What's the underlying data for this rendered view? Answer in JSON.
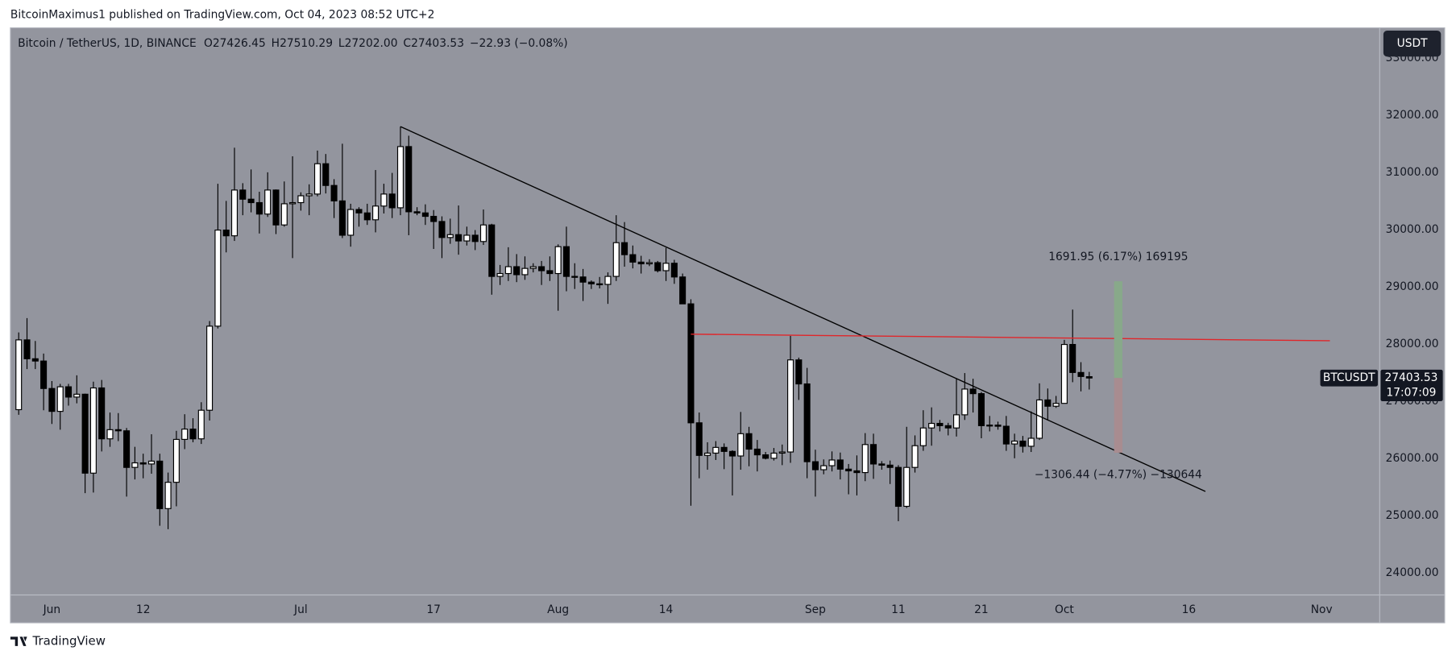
{
  "header": {
    "published": "BitcoinMaximus1 published on TradingView.com, Oct 04, 2023 08:52 UTC+2",
    "brand": "TradingView"
  },
  "chart_data": {
    "type": "candlestick",
    "symbol_label": "BTCUSDT",
    "currency": "USDT",
    "countdown": "17:07:09",
    "legend_title": "Bitcoin / TetherUS, 1D, BINANCE",
    "legend": [
      {
        "label": "O",
        "value": "27426.45"
      },
      {
        "label": "H",
        "value": "27510.29"
      },
      {
        "label": "L",
        "value": "27202.00"
      },
      {
        "label": "C",
        "value": "27403.53"
      }
    ],
    "change": "−22.93 (−0.08%)",
    "up_color": "#ffffff",
    "down_color": "#000000",
    "wick_color": "#000000",
    "background": "#93959e",
    "grid": false,
    "xlim": [
      "2023-05-27",
      "2023-11-08"
    ],
    "ylim": [
      23610,
      33526
    ],
    "yticks": [
      {
        "value": 24000,
        "label": "24000.00"
      },
      {
        "value": 25000,
        "label": "25000.00"
      },
      {
        "value": 26000,
        "label": "26000.00"
      },
      {
        "value": 27000,
        "label": "27000.00"
      },
      {
        "value": 28000,
        "label": "28000.00"
      },
      {
        "value": 29000,
        "label": "29000.00"
      },
      {
        "value": 30000,
        "label": "30000.00"
      },
      {
        "value": 31000,
        "label": "31000.00"
      },
      {
        "value": 32000,
        "label": "32000.00"
      },
      {
        "value": 33000,
        "label": "33000.00"
      }
    ],
    "xticks": [
      {
        "value": "2023-06-01",
        "label": "Jun"
      },
      {
        "value": "2023-06-12",
        "label": "12"
      },
      {
        "value": "2023-07-01",
        "label": "Jul"
      },
      {
        "value": "2023-07-17",
        "label": "17"
      },
      {
        "value": "2023-08-01",
        "label": "Aug"
      },
      {
        "value": "2023-08-14",
        "label": "14"
      },
      {
        "value": "2023-09-01",
        "label": "Sep"
      },
      {
        "value": "2023-09-11",
        "label": "11"
      },
      {
        "value": "2023-09-21",
        "label": "21"
      },
      {
        "value": "2023-10-01",
        "label": "Oct"
      },
      {
        "value": "2023-10-16",
        "label": "16"
      },
      {
        "value": "2023-11-01",
        "label": "Nov"
      }
    ],
    "x": [
      "2023-05-28",
      "2023-05-29",
      "2023-05-30",
      "2023-05-31",
      "2023-06-01",
      "2023-06-02",
      "2023-06-03",
      "2023-06-04",
      "2023-06-05",
      "2023-06-06",
      "2023-06-07",
      "2023-06-08",
      "2023-06-09",
      "2023-06-10",
      "2023-06-11",
      "2023-06-12",
      "2023-06-13",
      "2023-06-14",
      "2023-06-15",
      "2023-06-16",
      "2023-06-17",
      "2023-06-18",
      "2023-06-19",
      "2023-06-20",
      "2023-06-21",
      "2023-06-22",
      "2023-06-23",
      "2023-06-24",
      "2023-06-25",
      "2023-06-26",
      "2023-06-27",
      "2023-06-28",
      "2023-06-29",
      "2023-06-30",
      "2023-07-01",
      "2023-07-02",
      "2023-07-03",
      "2023-07-04",
      "2023-07-05",
      "2023-07-06",
      "2023-07-07",
      "2023-07-08",
      "2023-07-09",
      "2023-07-10",
      "2023-07-11",
      "2023-07-12",
      "2023-07-13",
      "2023-07-14",
      "2023-07-15",
      "2023-07-16",
      "2023-07-17",
      "2023-07-18",
      "2023-07-19",
      "2023-07-20",
      "2023-07-21",
      "2023-07-22",
      "2023-07-23",
      "2023-07-24",
      "2023-07-25",
      "2023-07-26",
      "2023-07-27",
      "2023-07-28",
      "2023-07-29",
      "2023-07-30",
      "2023-07-31",
      "2023-08-01",
      "2023-08-02",
      "2023-08-03",
      "2023-08-04",
      "2023-08-05",
      "2023-08-06",
      "2023-08-07",
      "2023-08-08",
      "2023-08-09",
      "2023-08-10",
      "2023-08-11",
      "2023-08-12",
      "2023-08-13",
      "2023-08-14",
      "2023-08-15",
      "2023-08-16",
      "2023-08-17",
      "2023-08-18",
      "2023-08-19",
      "2023-08-20",
      "2023-08-21",
      "2023-08-22",
      "2023-08-23",
      "2023-08-24",
      "2023-08-25",
      "2023-08-26",
      "2023-08-27",
      "2023-08-28",
      "2023-08-29",
      "2023-08-30",
      "2023-08-31",
      "2023-09-01",
      "2023-09-02",
      "2023-09-03",
      "2023-09-04",
      "2023-09-05",
      "2023-09-06",
      "2023-09-07",
      "2023-09-08",
      "2023-09-09",
      "2023-09-10",
      "2023-09-11",
      "2023-09-12",
      "2023-09-13",
      "2023-09-14",
      "2023-09-15",
      "2023-09-16",
      "2023-09-17",
      "2023-09-18",
      "2023-09-19",
      "2023-09-20",
      "2023-09-21",
      "2023-09-22",
      "2023-09-23",
      "2023-09-24",
      "2023-09-25",
      "2023-09-26",
      "2023-09-27",
      "2023-09-28",
      "2023-09-29",
      "2023-09-30",
      "2023-10-01",
      "2023-10-02",
      "2023-10-03",
      "2023-10-04"
    ],
    "ohlc": [
      [
        26850,
        28200,
        26760,
        28070
      ],
      [
        28070,
        28450,
        27560,
        27740
      ],
      [
        27740,
        28050,
        27560,
        27700
      ],
      [
        27700,
        27830,
        26840,
        27220
      ],
      [
        27220,
        27350,
        26600,
        26820
      ],
      [
        26820,
        27300,
        26500,
        27250
      ],
      [
        27250,
        27300,
        26920,
        27070
      ],
      [
        27070,
        27450,
        26960,
        27120
      ],
      [
        27120,
        27130,
        25390,
        25740
      ],
      [
        25740,
        27340,
        25400,
        27230
      ],
      [
        27230,
        27370,
        26120,
        26340
      ],
      [
        26340,
        26800,
        26200,
        26500
      ],
      [
        26500,
        26790,
        26300,
        26480
      ],
      [
        26480,
        26530,
        25330,
        25840
      ],
      [
        25840,
        26200,
        25630,
        25920
      ],
      [
        25920,
        26080,
        25650,
        25900
      ],
      [
        25900,
        26420,
        25730,
        25950
      ],
      [
        25950,
        26080,
        24820,
        25120
      ],
      [
        25120,
        25750,
        24760,
        25580
      ],
      [
        25580,
        26480,
        25160,
        26330
      ],
      [
        26330,
        26770,
        26160,
        26510
      ],
      [
        26510,
        26700,
        26280,
        26340
      ],
      [
        26340,
        26980,
        26250,
        26840
      ],
      [
        26840,
        28400,
        26660,
        28310
      ],
      [
        28310,
        30800,
        28270,
        29990
      ],
      [
        29990,
        30500,
        29600,
        29890
      ],
      [
        29890,
        31430,
        29800,
        30690
      ],
      [
        30690,
        30810,
        30250,
        30530
      ],
      [
        30530,
        31050,
        30300,
        30470
      ],
      [
        30470,
        30660,
        29930,
        30270
      ],
      [
        30270,
        31000,
        30220,
        30690
      ],
      [
        30690,
        30700,
        29920,
        30080
      ],
      [
        30080,
        30840,
        30050,
        30450
      ],
      [
        30450,
        31280,
        29500,
        30470
      ],
      [
        30470,
        30650,
        30330,
        30590
      ],
      [
        30590,
        30790,
        30250,
        30620
      ],
      [
        30620,
        31380,
        30580,
        31150
      ],
      [
        31150,
        31320,
        30630,
        30770
      ],
      [
        30770,
        30880,
        30200,
        30500
      ],
      [
        30500,
        31500,
        29850,
        29900
      ],
      [
        29900,
        30450,
        29700,
        30350
      ],
      [
        30350,
        30390,
        30050,
        30290
      ],
      [
        30290,
        30450,
        30080,
        30170
      ],
      [
        30170,
        31040,
        29950,
        30410
      ],
      [
        30410,
        30800,
        30280,
        30620
      ],
      [
        30620,
        30990,
        30200,
        30380
      ],
      [
        30380,
        31800,
        30250,
        31450
      ],
      [
        31450,
        31640,
        29900,
        30310
      ],
      [
        30310,
        30390,
        30250,
        30290
      ],
      [
        30290,
        30440,
        30080,
        30230
      ],
      [
        30230,
        30340,
        29660,
        30140
      ],
      [
        30140,
        30230,
        29500,
        29860
      ],
      [
        29860,
        30190,
        29750,
        29910
      ],
      [
        29910,
        30420,
        29560,
        29800
      ],
      [
        29800,
        30050,
        29720,
        29900
      ],
      [
        29900,
        29990,
        29640,
        29790
      ],
      [
        29790,
        30350,
        29730,
        30080
      ],
      [
        30080,
        30100,
        28860,
        29180
      ],
      [
        29180,
        29380,
        29030,
        29230
      ],
      [
        29230,
        29690,
        29100,
        29350
      ],
      [
        29350,
        29570,
        29080,
        29210
      ],
      [
        29210,
        29530,
        29120,
        29320
      ],
      [
        29320,
        29410,
        29250,
        29350
      ],
      [
        29350,
        29450,
        29030,
        29280
      ],
      [
        29280,
        29530,
        29100,
        29230
      ],
      [
        29230,
        29740,
        28580,
        29700
      ],
      [
        29700,
        30050,
        28920,
        29180
      ],
      [
        29180,
        29410,
        28960,
        29170
      ],
      [
        29170,
        29310,
        28750,
        29080
      ],
      [
        29080,
        29110,
        28960,
        29050
      ],
      [
        29050,
        29170,
        28970,
        29040
      ],
      [
        29040,
        29250,
        28700,
        29180
      ],
      [
        29180,
        30250,
        29100,
        29770
      ],
      [
        29770,
        30130,
        29350,
        29560
      ],
      [
        29560,
        29720,
        29320,
        29430
      ],
      [
        29430,
        29540,
        29230,
        29400
      ],
      [
        29400,
        29480,
        29360,
        29420
      ],
      [
        29420,
        29450,
        29250,
        29280
      ],
      [
        29280,
        29680,
        29100,
        29410
      ],
      [
        29410,
        29470,
        29050,
        29170
      ],
      [
        29170,
        29230,
        28700,
        28700
      ],
      [
        28700,
        28780,
        25170,
        26620
      ],
      [
        26620,
        26800,
        25650,
        26050
      ],
      [
        26050,
        26280,
        25800,
        26090
      ],
      [
        26090,
        26300,
        25970,
        26190
      ],
      [
        26190,
        26260,
        25810,
        26120
      ],
      [
        26120,
        26140,
        25350,
        26040
      ],
      [
        26040,
        26810,
        25800,
        26430
      ],
      [
        26430,
        26550,
        25860,
        26160
      ],
      [
        26160,
        26320,
        25770,
        26060
      ],
      [
        26060,
        26110,
        25980,
        26000
      ],
      [
        26000,
        26180,
        25960,
        26090
      ],
      [
        26090,
        26240,
        25880,
        26110
      ],
      [
        26110,
        28140,
        25920,
        27720
      ],
      [
        27720,
        27760,
        27020,
        27300
      ],
      [
        27300,
        27580,
        25650,
        25940
      ],
      [
        25940,
        26150,
        25330,
        25800
      ],
      [
        25800,
        25980,
        25720,
        25870
      ],
      [
        25870,
        26120,
        25770,
        25970
      ],
      [
        25970,
        26100,
        25630,
        25810
      ],
      [
        25810,
        25900,
        25370,
        25780
      ],
      [
        25780,
        26050,
        25350,
        25750
      ],
      [
        25750,
        26440,
        25600,
        26240
      ],
      [
        26240,
        26430,
        25640,
        25900
      ],
      [
        25900,
        25950,
        25800,
        25880
      ],
      [
        25880,
        25960,
        25550,
        25840
      ],
      [
        25840,
        25880,
        24900,
        25160
      ],
      [
        25160,
        26550,
        25130,
        25840
      ],
      [
        25840,
        26400,
        25750,
        26220
      ],
      [
        26220,
        26840,
        26130,
        26530
      ],
      [
        26530,
        26890,
        26220,
        26610
      ],
      [
        26610,
        26670,
        26470,
        26570
      ],
      [
        26570,
        26620,
        26400,
        26530
      ],
      [
        26530,
        27400,
        26380,
        26760
      ],
      [
        26760,
        27490,
        26670,
        27210
      ],
      [
        27210,
        27390,
        26800,
        27130
      ],
      [
        27130,
        27160,
        26350,
        26570
      ],
      [
        26570,
        26740,
        26470,
        26580
      ],
      [
        26580,
        26640,
        26500,
        26560
      ],
      [
        26560,
        26740,
        26130,
        26250
      ],
      [
        26250,
        26430,
        26000,
        26300
      ],
      [
        26300,
        26390,
        26100,
        26210
      ],
      [
        26210,
        26820,
        26110,
        26350
      ],
      [
        26350,
        27310,
        26320,
        27020
      ],
      [
        27020,
        27220,
        26660,
        26910
      ],
      [
        26910,
        27090,
        26880,
        26960
      ],
      [
        26960,
        28070,
        26960,
        27990
      ],
      [
        27990,
        28600,
        27330,
        27500
      ],
      [
        27500,
        27680,
        27170,
        27430
      ],
      [
        27426.45,
        27510.29,
        27202.0,
        27403.53
      ]
    ],
    "lines": [
      {
        "start": [
          "2023-07-13",
          31800
        ],
        "end": [
          "2023-10-18",
          25420
        ],
        "color": "#000000"
      },
      {
        "start": [
          "2023-08-17",
          28170
        ],
        "end": [
          "2023-11-02",
          28055
        ],
        "color": "#e0262a"
      }
    ],
    "position": {
      "start": "2023-10-07",
      "end": "2023-10-08",
      "entry": 27403.53,
      "target": 29095.48,
      "stop": 26097.09,
      "target_color": "#88a98a",
      "stop_color": "#a88c90",
      "target_label": "1691.95 (6.17%) 169195",
      "stop_label": "−1306.44 (−4.77%) −130644"
    }
  }
}
